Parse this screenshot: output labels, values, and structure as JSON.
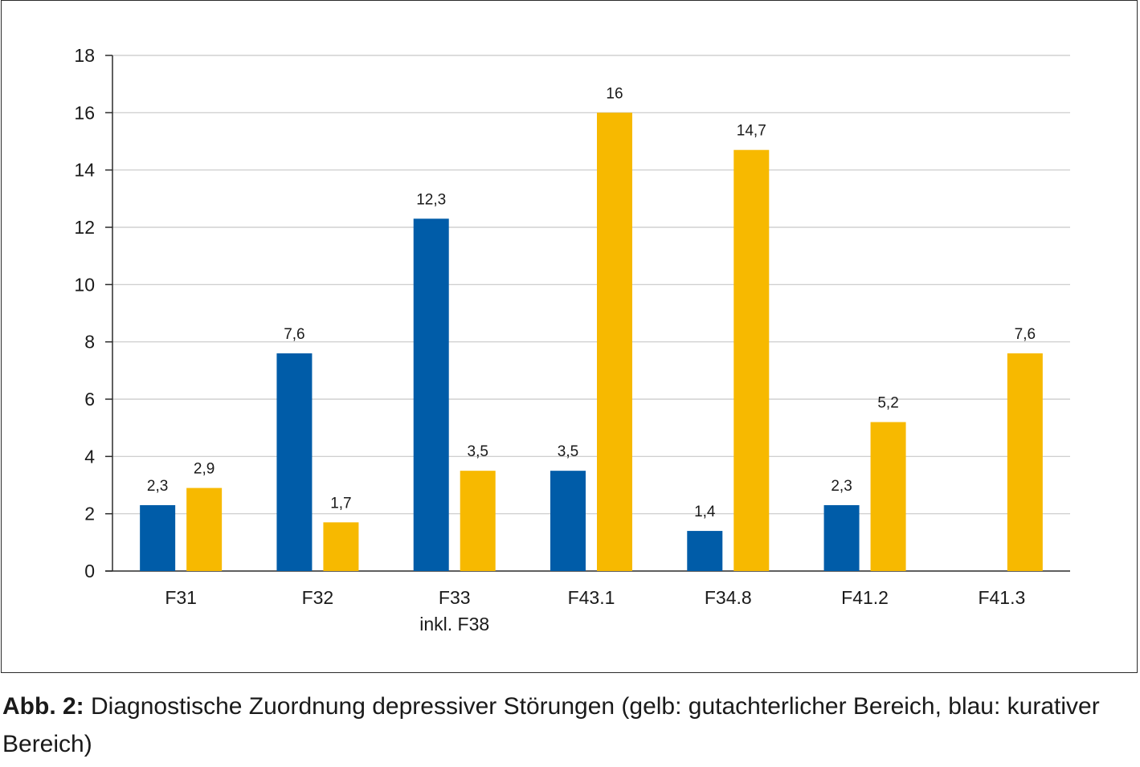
{
  "chart_data": {
    "type": "bar",
    "categories": [
      "F31",
      "F32",
      "F33\ninkl. F38",
      "F43.1",
      "F34.8",
      "F41.2",
      "F41.3"
    ],
    "series": [
      {
        "values": [
          2.3,
          7.6,
          12.3,
          3.5,
          1.4,
          2.3,
          null
        ],
        "labels": [
          "2,3",
          "7,6",
          "12,3",
          "3,5",
          "1,4",
          "2,3",
          ""
        ],
        "color": "#005ca8"
      },
      {
        "values": [
          2.9,
          1.7,
          3.5,
          16,
          14.7,
          5.2,
          7.6
        ],
        "labels": [
          "2,9",
          "1,7",
          "3,5",
          "16",
          "14,7",
          "5,2",
          "7,6"
        ],
        "color": "#f7b900"
      }
    ],
    "ylim": [
      0,
      18
    ],
    "yticks": [
      0,
      2,
      4,
      6,
      8,
      10,
      12,
      14,
      16,
      18
    ],
    "grid": true,
    "grid_color": "#c8c8c8"
  },
  "caption": {
    "prefix": "Abb. 2:",
    "text": " Diagnostische Zuordnung depressiver Störungen (gelb: gutachterlicher Bereich, blau: kurativer Bereich)"
  }
}
